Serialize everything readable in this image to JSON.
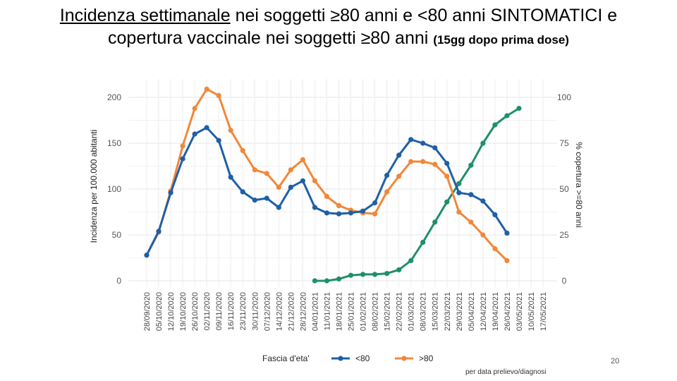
{
  "slide": {
    "title_underlined": "Incidenza settimanale",
    "title_rest": " nei soggetti ≥80 anni e <80 anni SINTOMATICI e",
    "title_line2": "copertura vaccinale nei soggetti ≥80 anni",
    "title_small": "(15gg dopo prima dose)",
    "slide_number": "20",
    "caption": "per data prelievo/diagnosi"
  },
  "chart_data": {
    "type": "line",
    "ylabel": "Incidenza per 100.000 abitanti",
    "y2label": "% copertura >=80 anni",
    "ylim": [
      0,
      200
    ],
    "y2lim": [
      0,
      100
    ],
    "yticks": [
      "0",
      "50",
      "100",
      "150",
      "200"
    ],
    "y2ticks": [
      "0",
      "25",
      "50",
      "75",
      "100"
    ],
    "categories": [
      "28/09/2020",
      "05/10/2020",
      "12/10/2020",
      "19/10/2020",
      "26/10/2020",
      "02/11/2020",
      "09/11/2020",
      "16/11/2020",
      "23/11/2020",
      "30/11/2020",
      "07/12/2020",
      "14/12/2020",
      "21/12/2020",
      "28/12/2020",
      "04/01/2021",
      "11/01/2021",
      "18/01/2021",
      "25/01/2021",
      "01/02/2021",
      "08/02/2021",
      "15/02/2021",
      "22/02/2021",
      "01/03/2021",
      "08/03/2021",
      "15/03/2021",
      "22/03/2021",
      "29/03/2021",
      "05/04/2021",
      "12/04/2021",
      "19/04/2021",
      "26/04/2021",
      "03/05/2021",
      "10/05/2021",
      "17/05/2021"
    ],
    "legend_title": "Fascia d'eta'",
    "series": [
      {
        "name": "<80",
        "color": "#1f5fa6",
        "axis": "left",
        "values": [
          28,
          54,
          96,
          133,
          160,
          167,
          153,
          113,
          97,
          88,
          90,
          80,
          102,
          109,
          80,
          74,
          73,
          74,
          76,
          85,
          115,
          137,
          154,
          150,
          145,
          128,
          96,
          94,
          87,
          72,
          52,
          null,
          null,
          null
        ]
      },
      {
        "name": ">80",
        "color": "#f0883a",
        "axis": "left",
        "values": [
          28,
          53,
          98,
          147,
          188,
          209,
          202,
          164,
          142,
          121,
          117,
          102,
          121,
          132,
          109,
          92,
          82,
          77,
          74,
          73,
          97,
          114,
          130,
          130,
          127,
          114,
          75,
          64,
          50,
          35,
          22,
          null,
          null,
          null
        ]
      },
      {
        "name": "% copertura >=80 anni",
        "color": "#1e9069",
        "axis": "right",
        "legend": false,
        "values": [
          null,
          null,
          null,
          null,
          null,
          null,
          null,
          null,
          null,
          null,
          null,
          null,
          null,
          null,
          0,
          0,
          1,
          3,
          3.5,
          3.5,
          4,
          6,
          11,
          21,
          32,
          43,
          53,
          63,
          75,
          85,
          90,
          94,
          null,
          null
        ]
      }
    ]
  }
}
